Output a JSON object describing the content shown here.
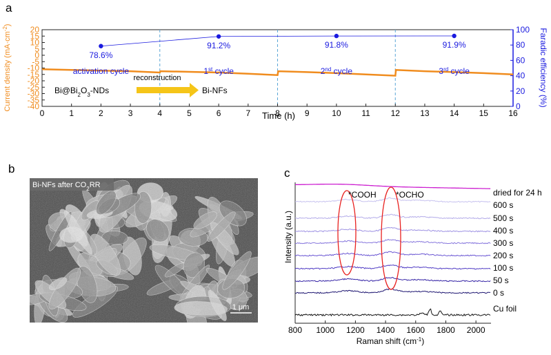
{
  "panel_labels": {
    "a": "a",
    "b": "b",
    "c": "c"
  },
  "colors": {
    "current": "#f08c1e",
    "fe": "#1a1adf",
    "divider": "#5aa6d6",
    "arrow": "#f5c518",
    "oval": "#e8201e",
    "sem_bg": "#5a5a5a"
  },
  "chart_data": [
    {
      "type": "line",
      "panel": "a",
      "xlabel": "Time (h)",
      "xlim": [
        0,
        16
      ],
      "xticks": [
        "0",
        "1",
        "2",
        "3",
        "4",
        "5",
        "6",
        "7",
        "8",
        "9",
        "10",
        "11",
        "12",
        "13",
        "14",
        "15",
        "16"
      ],
      "ylabel_left": {
        "main": "Current density (mA·cm",
        "sup": "-2",
        "end": ")"
      },
      "ylim_left": [
        -40,
        20
      ],
      "yticks_left": [
        "20",
        "15",
        "10",
        "5",
        "0",
        "-5",
        "-10",
        "-15",
        "-20",
        "-25",
        "-30",
        "-35",
        "-40"
      ],
      "ylabel_right": "Faradic efficiency (%)",
      "ylim_right": [
        0,
        100
      ],
      "yticks_right": [
        "100",
        "80",
        "60",
        "40",
        "20",
        "0"
      ],
      "dividers_x": [
        4,
        8,
        12
      ],
      "current_density": {
        "x": [
          0,
          1,
          2,
          3,
          4,
          4.02,
          5,
          6,
          7,
          8,
          8.02,
          9,
          10,
          11,
          12,
          12.02,
          13,
          14,
          15,
          16
        ],
        "y": [
          -11,
          -11.5,
          -12,
          -12.5,
          -13.5,
          -12.5,
          -13,
          -13.5,
          -14.5,
          -15.5,
          -12.5,
          -13.2,
          -14,
          -15,
          -16,
          -11.5,
          -12.5,
          -13.2,
          -14,
          -15
        ]
      },
      "faradic_efficiency": {
        "x": [
          2,
          6,
          10,
          14
        ],
        "y": [
          78.6,
          91.2,
          91.8,
          91.9
        ],
        "labels": [
          "78.6%",
          "91.2%",
          "91.8%",
          "91.9%"
        ]
      },
      "cycle_labels": [
        {
          "base": "activation cycle",
          "sup": "",
          "end": ""
        },
        {
          "base": "1",
          "sup": "st",
          "end": " cycle"
        },
        {
          "base": "2",
          "sup": "nd",
          "end": " cycle"
        },
        {
          "base": "3",
          "sup": "rd",
          "end": " cycle"
        }
      ],
      "annotation": {
        "from": {
          "a": "Bi@Bi",
          "sub": "2",
          "b": "O",
          "sub2": "3",
          "c": "-NDs"
        },
        "arrow_label": "reconstruction",
        "to": "Bi-NFs"
      }
    },
    {
      "type": "line",
      "panel": "c",
      "xlabel": {
        "main": "Raman shift (cm",
        "sup": "-1",
        "end": ")"
      },
      "xlim": [
        800,
        2100
      ],
      "xticks": [
        "800",
        "1000",
        "1200",
        "1400",
        "1600",
        "1800",
        "2000"
      ],
      "ylabel": "Intensity (a.u.)",
      "ovals": [
        "*COOH",
        "*OCHO"
      ],
      "spectra": [
        {
          "label": "dried for 24 h",
          "color": "#cc1fd0"
        },
        {
          "label": "600 s",
          "color": "#c7c2ef"
        },
        {
          "label": "500 s",
          "color": "#b3abe9"
        },
        {
          "label": "400 s",
          "color": "#9d91e3"
        },
        {
          "label": "300 s",
          "color": "#8676dd"
        },
        {
          "label": "200 s",
          "color": "#6a56d3"
        },
        {
          "label": "100 s",
          "color": "#4f3bc4"
        },
        {
          "label": "50 s",
          "color": "#3524a6"
        },
        {
          "label": "0 s",
          "color": "#1c1470"
        },
        {
          "label": "Cu foil",
          "color": "#111111"
        }
      ]
    }
  ],
  "sem": {
    "caption": {
      "a": "Bi-NFs after CO",
      "sub": "2",
      "b": "RR"
    },
    "scalebar": "1 μm"
  }
}
